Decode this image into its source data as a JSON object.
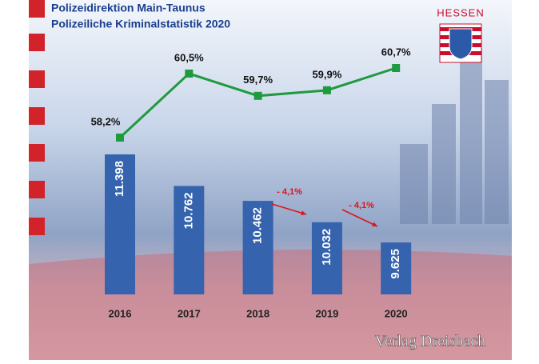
{
  "chart_data": [
    {
      "type": "bar",
      "title": "Polizeidirektion Main-Taunus",
      "subtitle": "Polizeiliche Kriminalstatistik 2020",
      "categories": [
        "2016",
        "2017",
        "2018",
        "2019",
        "2020"
      ],
      "values": [
        11398,
        10762,
        10462,
        10032,
        9625
      ],
      "value_labels": [
        "11.398",
        "10.762",
        "10.462",
        "10.032",
        "9.625"
      ],
      "color": "#3563ae",
      "annotations": [
        "- 4,1%",
        "- 4,1%"
      ]
    },
    {
      "type": "line",
      "values": [
        58.2,
        60.5,
        59.7,
        59.9,
        60.7
      ],
      "value_labels": [
        "58,2%",
        "60,5%",
        "59,7%",
        "59,9%",
        "60,7%"
      ],
      "color": "#1f9a3e"
    }
  ],
  "logo": "HESSEN",
  "watermark": "Verlag Dreisbach"
}
